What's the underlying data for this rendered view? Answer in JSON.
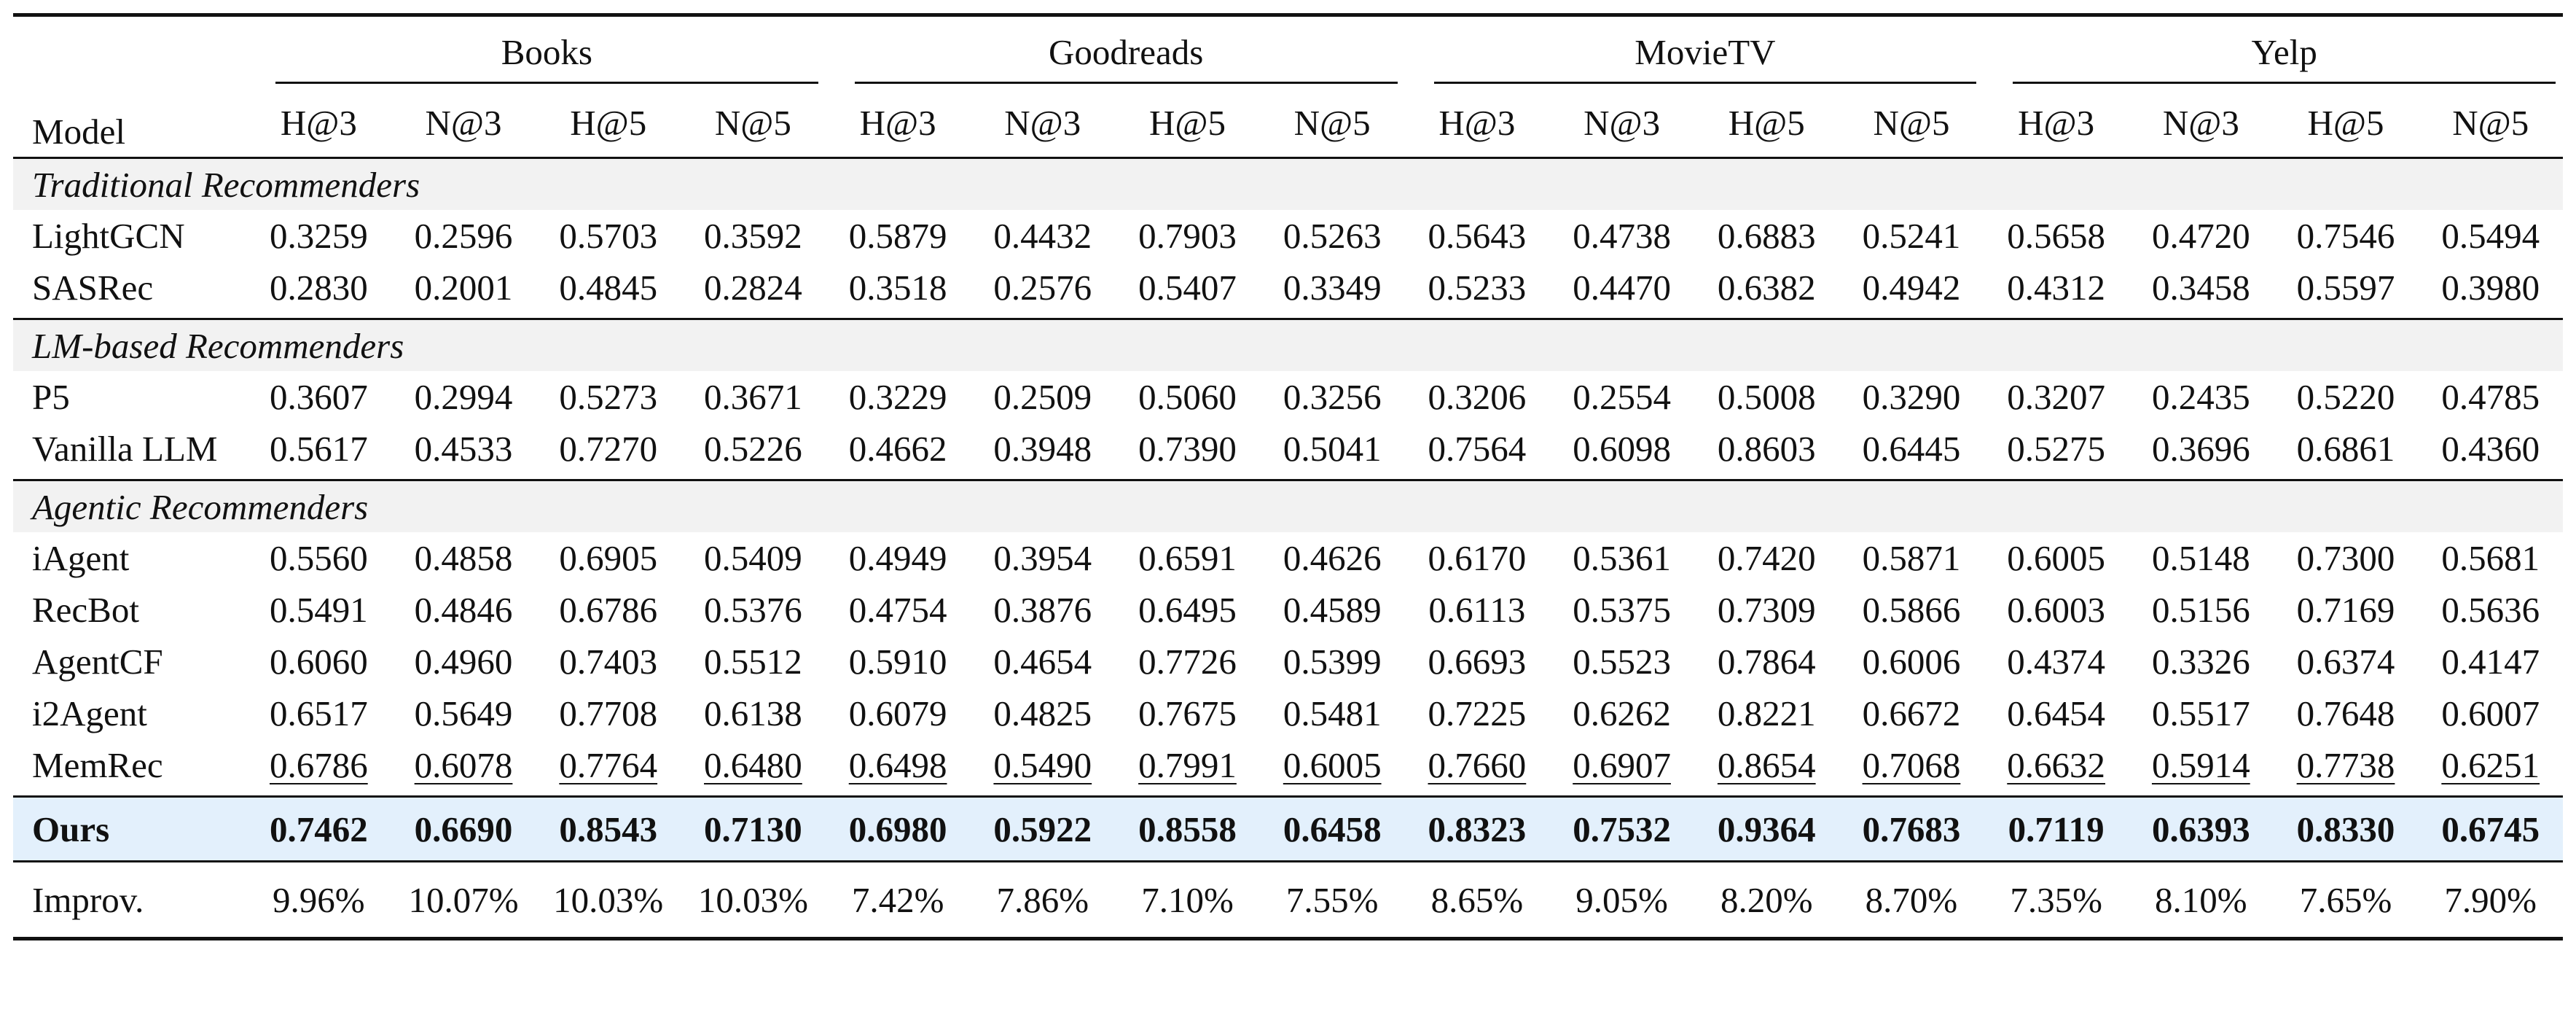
{
  "table": {
    "model_header": "Model",
    "datasets": [
      "Books",
      "Goodreads",
      "MovieTV",
      "Yelp"
    ],
    "metrics": [
      "H@3",
      "N@3",
      "H@5",
      "N@5"
    ],
    "sections": [
      {
        "title": "Traditional Recommenders",
        "rows": [
          {
            "model": "LightGCN",
            "values": [
              "0.3259",
              "0.2596",
              "0.5703",
              "0.3592",
              "0.5879",
              "0.4432",
              "0.7903",
              "0.5263",
              "0.5643",
              "0.4738",
              "0.6883",
              "0.5241",
              "0.5658",
              "0.4720",
              "0.7546",
              "0.5494"
            ]
          },
          {
            "model": "SASRec",
            "values": [
              "0.2830",
              "0.2001",
              "0.4845",
              "0.2824",
              "0.3518",
              "0.2576",
              "0.5407",
              "0.3349",
              "0.5233",
              "0.4470",
              "0.6382",
              "0.4942",
              "0.4312",
              "0.3458",
              "0.5597",
              "0.3980"
            ]
          }
        ]
      },
      {
        "title": "LM-based Recommenders",
        "rows": [
          {
            "model": "P5",
            "values": [
              "0.3607",
              "0.2994",
              "0.5273",
              "0.3671",
              "0.3229",
              "0.2509",
              "0.5060",
              "0.3256",
              "0.3206",
              "0.2554",
              "0.5008",
              "0.3290",
              "0.3207",
              "0.2435",
              "0.5220",
              "0.4785"
            ]
          },
          {
            "model": "Vanilla LLM",
            "values": [
              "0.5617",
              "0.4533",
              "0.7270",
              "0.5226",
              "0.4662",
              "0.3948",
              "0.7390",
              "0.5041",
              "0.7564",
              "0.6098",
              "0.8603",
              "0.6445",
              "0.5275",
              "0.3696",
              "0.6861",
              "0.4360"
            ]
          }
        ]
      },
      {
        "title": "Agentic Recommenders",
        "rows": [
          {
            "model": "iAgent",
            "values": [
              "0.5560",
              "0.4858",
              "0.6905",
              "0.5409",
              "0.4949",
              "0.3954",
              "0.6591",
              "0.4626",
              "0.6170",
              "0.5361",
              "0.7420",
              "0.5871",
              "0.6005",
              "0.5148",
              "0.7300",
              "0.5681"
            ]
          },
          {
            "model": "RecBot",
            "values": [
              "0.5491",
              "0.4846",
              "0.6786",
              "0.5376",
              "0.4754",
              "0.3876",
              "0.6495",
              "0.4589",
              "0.6113",
              "0.5375",
              "0.7309",
              "0.5866",
              "0.6003",
              "0.5156",
              "0.7169",
              "0.5636"
            ]
          },
          {
            "model": "AgentCF",
            "values": [
              "0.6060",
              "0.4960",
              "0.7403",
              "0.5512",
              "0.5910",
              "0.4654",
              "0.7726",
              "0.5399",
              "0.6693",
              "0.5523",
              "0.7864",
              "0.6006",
              "0.4374",
              "0.3326",
              "0.6374",
              "0.4147"
            ]
          },
          {
            "model": "i2Agent",
            "values": [
              "0.6517",
              "0.5649",
              "0.7708",
              "0.6138",
              "0.6079",
              "0.4825",
              "0.7675",
              "0.5481",
              "0.7225",
              "0.6262",
              "0.8221",
              "0.6672",
              "0.6454",
              "0.5517",
              "0.7648",
              "0.6007"
            ]
          },
          {
            "model": "MemRec",
            "underline": true,
            "values": [
              "0.6786",
              "0.6078",
              "0.7764",
              "0.6480",
              "0.6498",
              "0.5490",
              "0.7991",
              "0.6005",
              "0.7660",
              "0.6907",
              "0.8654",
              "0.7068",
              "0.6632",
              "0.5914",
              "0.7738",
              "0.6251"
            ]
          }
        ]
      }
    ],
    "ours": {
      "model": "Ours",
      "values": [
        "0.7462",
        "0.6690",
        "0.8543",
        "0.7130",
        "0.6980",
        "0.5922",
        "0.8558",
        "0.6458",
        "0.8323",
        "0.7532",
        "0.9364",
        "0.7683",
        "0.7119",
        "0.6393",
        "0.8330",
        "0.6745"
      ]
    },
    "improv": {
      "model": "Improv.",
      "values": [
        "9.96%",
        "10.07%",
        "10.03%",
        "10.03%",
        "7.42%",
        "7.86%",
        "7.10%",
        "7.55%",
        "8.65%",
        "9.05%",
        "8.20%",
        "8.70%",
        "7.35%",
        "8.10%",
        "7.65%",
        "7.90%"
      ]
    },
    "colors": {
      "ours_highlight": "#e3f0fc",
      "section_band": "#f2f2f2",
      "rule": "#111111"
    }
  }
}
